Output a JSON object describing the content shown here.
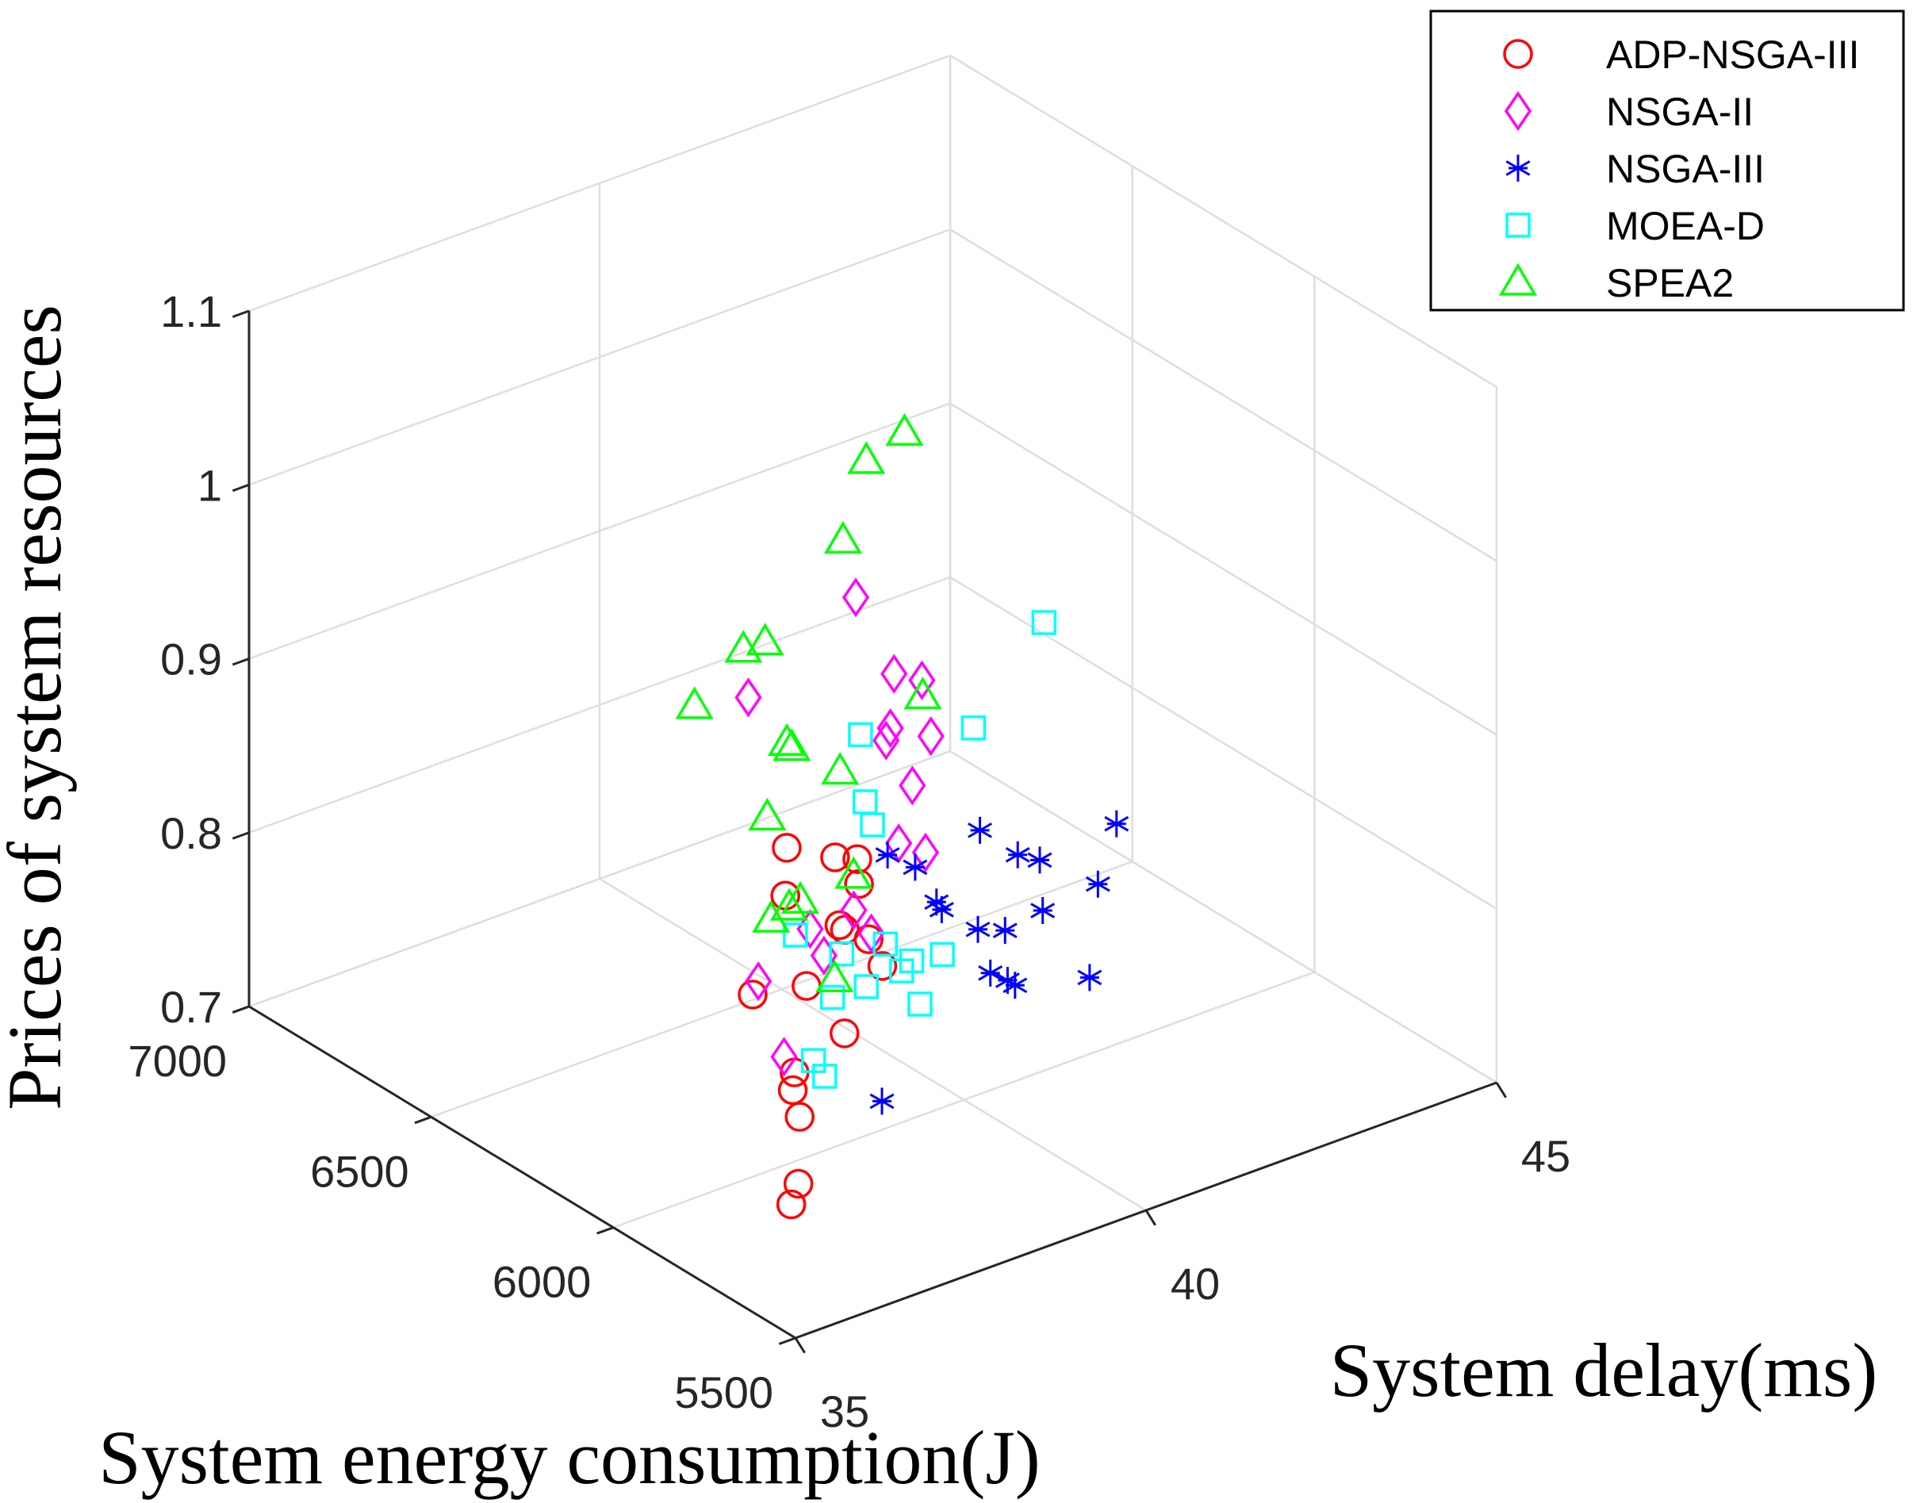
{
  "chart_data": {
    "type": "scatter",
    "projection": "3d",
    "title": "",
    "xlabel": "System delay(ms)",
    "ylabel": "System energy consumption(J)",
    "zlabel": "Prices of system resources",
    "xlim": [
      35,
      45
    ],
    "ylim": [
      5500,
      7000
    ],
    "zlim": [
      0.7,
      1.1
    ],
    "xticks": [
      "35",
      "40",
      "45"
    ],
    "yticks": [
      "5500",
      "6000",
      "6500",
      "7000"
    ],
    "zticks": [
      "0.7",
      "0.8",
      "0.9",
      "1",
      "1.1"
    ],
    "grid": true,
    "legend_position": "top-right",
    "series": [
      {
        "name": "ADP-NSGA-III",
        "marker": "circle",
        "color": "#ff0000",
        "points": [
          [
            38.62,
            6076,
            0.811
          ],
          [
            38.42,
            6186,
            0.817
          ],
          [
            38.94,
            6020,
            0.79
          ],
          [
            39.29,
            6156,
            0.829
          ],
          [
            38.48,
            6061,
            0.854
          ],
          [
            38.75,
            6021,
            0.808
          ],
          [
            38.19,
            6138,
            0.854
          ],
          [
            38.73,
            6082,
            0.806
          ],
          [
            38.66,
            6030,
            0.84
          ],
          [
            38.15,
            6076,
            0.783
          ],
          [
            38.38,
            6016,
            0.76
          ],
          [
            37.85,
            6166,
            0.771
          ],
          [
            38.28,
            6134,
            0.724
          ],
          [
            37.85,
            6056,
            0.73
          ],
          [
            38.26,
            6116,
            0.701
          ],
          [
            37.65,
            6002,
            0.686
          ],
          [
            37.87,
            6064,
            0.663
          ]
        ]
      },
      {
        "name": "NSGA-II",
        "marker": "diamond",
        "color": "#ff00ff",
        "points": [
          [
            39.76,
            6069,
            0.936
          ],
          [
            39.57,
            6214,
            0.968
          ],
          [
            39.3,
            6057,
            0.948
          ],
          [
            38.37,
            6278,
            0.92
          ],
          [
            39.44,
            6094,
            0.91
          ],
          [
            39.81,
            6054,
            0.905
          ],
          [
            39.68,
            6152,
            0.892
          ],
          [
            40.07,
            6155,
            0.86
          ],
          [
            39.51,
            6011,
            0.848
          ],
          [
            39.33,
            6050,
            0.851
          ],
          [
            38.84,
            6079,
            0.816
          ],
          [
            39.22,
            6104,
            0.794
          ],
          [
            39.07,
            6243,
            0.781
          ],
          [
            38.42,
            6080,
            0.796
          ],
          [
            38.3,
            6237,
            0.763
          ],
          [
            37.83,
            6076,
            0.747
          ]
        ]
      },
      {
        "name": "NSGA-III",
        "marker": "asterisk",
        "color": "#0000ff",
        "points": [
          [
            41.2,
            5812,
            0.865
          ],
          [
            41.86,
            5990,
            0.798
          ],
          [
            40.27,
            6008,
            0.85
          ],
          [
            39.84,
            6103,
            0.823
          ],
          [
            39.8,
            6171,
            0.822
          ],
          [
            41.03,
            5990,
            0.824
          ],
          [
            41.09,
            6062,
            0.817
          ],
          [
            39.99,
            6059,
            0.802
          ],
          [
            40.03,
            6081,
            0.803
          ],
          [
            40.33,
            6025,
            0.79
          ],
          [
            40.53,
            5989,
            0.791
          ],
          [
            41.03,
            5982,
            0.796
          ],
          [
            40.35,
            5927,
            0.77
          ],
          [
            40.31,
            5987,
            0.77
          ],
          [
            41.18,
            5882,
            0.768
          ],
          [
            40.28,
            5934,
            0.773
          ],
          [
            38.79,
            5992,
            0.718
          ]
        ]
      },
      {
        "name": "MOEA-D",
        "marker": "square",
        "color": "#00ffff",
        "points": [
          [
            41.21,
            6013,
            0.955
          ],
          [
            40.49,
            6068,
            0.898
          ],
          [
            39.46,
            6180,
            0.895
          ],
          [
            38.95,
            6069,
            0.878
          ],
          [
            39.34,
            6124,
            0.852
          ],
          [
            38.88,
            6000,
            0.806
          ],
          [
            38.21,
            6118,
            0.806
          ],
          [
            38.45,
            6037,
            0.802
          ],
          [
            39.25,
            5999,
            0.791
          ],
          [
            38.11,
            5997,
            0.787
          ],
          [
            38.8,
            6037,
            0.778
          ],
          [
            39.77,
            6015,
            0.785
          ],
          [
            39.32,
            6040,
            0.779
          ],
          [
            39.15,
            5957,
            0.773
          ],
          [
            38.24,
            6074,
            0.739
          ],
          [
            38.16,
            6028,
            0.737
          ]
        ]
      },
      {
        "name": "SPEA2",
        "marker": "triangle",
        "color": "#00ff00",
        "points": [
          [
            40.0,
            6163,
            1.063
          ],
          [
            39.45,
            6162,
            1.055
          ],
          [
            39.17,
            6172,
            1.012
          ],
          [
            39.46,
            6009,
            0.939
          ],
          [
            37.78,
            6178,
            0.969
          ],
          [
            38.36,
            6230,
            0.958
          ],
          [
            38.07,
            6101,
            0.918
          ],
          [
            38.28,
            6155,
            0.911
          ],
          [
            38.28,
            6009,
            0.913
          ],
          [
            37.41,
            6241,
            0.934
          ],
          [
            37.98,
            6151,
            0.873
          ],
          [
            38.53,
            6020,
            0.848
          ],
          [
            37.95,
            6085,
            0.83
          ],
          [
            38.15,
            6093,
            0.83
          ],
          [
            37.79,
            6104,
            0.823
          ],
          [
            38.17,
            6003,
            0.796
          ]
        ]
      }
    ]
  }
}
